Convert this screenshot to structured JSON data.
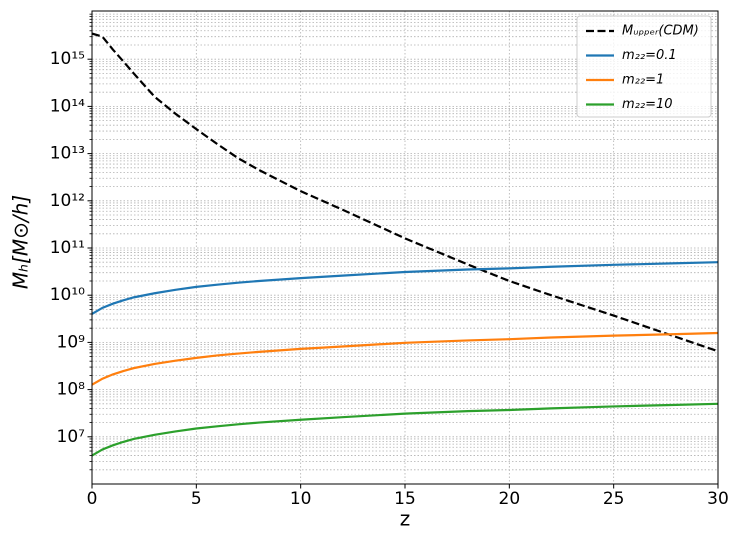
{
  "chart_data": {
    "type": "line",
    "xlabel": "z",
    "ylabel": "Mₕ[M⊙/h]",
    "x": [
      0,
      0.5,
      1,
      1.5,
      2,
      3,
      4,
      5,
      6,
      7,
      8,
      10,
      12,
      15,
      18,
      20,
      22,
      25,
      28,
      30
    ],
    "series": [
      {
        "name": "Mᵤₚₚₑᵣ(CDM)",
        "color": "#000000",
        "dashed": true,
        "values": [
          3500000000000000.0,
          3000000000000000.0,
          1600000000000000.0,
          900000000000000.0,
          500000000000000.0,
          160000000000000.0,
          70000000000000.0,
          33000000000000.0,
          16000000000000.0,
          8000000000000.0,
          4500000000000.0,
          1600000000000.0,
          650000000000.0,
          160000000000.0,
          45000000000.0,
          20000000000.0,
          10000000000.0,
          3700000000.0,
          1300000000.0,
          650000000.0
        ]
      },
      {
        "name": "m₂₂=0.1",
        "color": "#1f77b4",
        "values": [
          4000000000.0,
          5400000000.0,
          6600000000.0,
          7800000000.0,
          9000000000.0,
          11000000000.0,
          13000000000.0,
          15000000000.0,
          16700000000.0,
          18400000000.0,
          20000000000.0,
          23000000000.0,
          26000000000.0,
          31000000000.0,
          35000000000.0,
          37000000000.0,
          40000000000.0,
          44000000000.0,
          47500000000.0,
          50000000000.0
        ]
      },
      {
        "name": "m₂₂=1",
        "color": "#ff7f0e",
        "values": [
          127000000.0,
          170000000.0,
          210000000.0,
          247000000.0,
          285000000.0,
          350000000.0,
          410000000.0,
          470000000.0,
          530000000.0,
          580000000.0,
          630000000.0,
          730000000.0,
          820000000.0,
          980000000.0,
          1100000000.0,
          1170000000.0,
          1270000000.0,
          1390000000.0,
          1500000000.0,
          1580000000.0
        ]
      },
      {
        "name": "m₂₂=10",
        "color": "#2ca02c",
        "values": [
          4000000.0,
          5400000.0,
          6600000.0,
          7800000.0,
          9000000.0,
          11000000.0,
          13000000.0,
          15000000.0,
          16700000.0,
          18400000.0,
          20000000.0,
          23000000.0,
          26000000.0,
          31000000.0,
          35000000.0,
          37000000.0,
          40000000.0,
          44000000.0,
          47500000.0,
          50000000.0
        ]
      }
    ],
    "xlim": [
      0,
      30
    ],
    "xticks": [
      0,
      5,
      10,
      15,
      20,
      25,
      30
    ],
    "ylim": [
      1000000.0,
      1.05e+16
    ],
    "ylog": true,
    "yticks": [
      {
        "value": 10000000.0,
        "label": "10⁷"
      },
      {
        "value": 100000000.0,
        "label": "10⁸"
      },
      {
        "value": 1000000000.0,
        "label": "10⁹"
      },
      {
        "value": 10000000000.0,
        "label": "10¹⁰"
      },
      {
        "value": 100000000000.0,
        "label": "10¹¹"
      },
      {
        "value": 1000000000000.0,
        "label": "10¹²"
      },
      {
        "value": 10000000000000.0,
        "label": "10¹³"
      },
      {
        "value": 100000000000000.0,
        "label": "10¹⁴"
      },
      {
        "value": 1000000000000000.0,
        "label": "10¹⁵"
      }
    ],
    "grid": true,
    "legend": "upper right"
  }
}
